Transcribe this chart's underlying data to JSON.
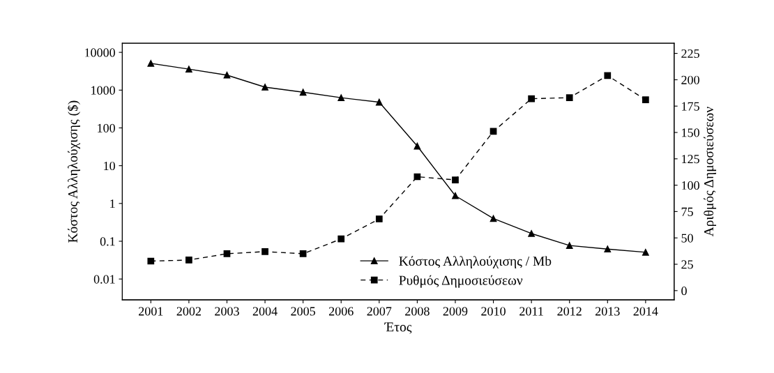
{
  "chart_data": {
    "type": "line",
    "xlabel": "Έτος",
    "ylabel": "Κόστος Αλληλούχισης ($)",
    "y2label": "Αριθμός Δημοσιεύσεων",
    "categories": [
      "2001",
      "2002",
      "2003",
      "2004",
      "2005",
      "2006",
      "2007",
      "2008",
      "2009",
      "2010",
      "2011",
      "2012",
      "2013",
      "2014"
    ],
    "series": [
      {
        "name": "Κόστος Αλληλούχισης / Mb",
        "color": "#000000",
        "marker": "triangle",
        "line_style": "solid",
        "values": [
          5100,
          3600,
          2500,
          1200,
          880,
          630,
          480,
          33,
          1.6,
          0.4,
          0.16,
          0.077,
          0.062,
          0.051
        ]
      },
      {
        "name": "Ρυθμός Δημοσιεύσεων",
        "color": "#000000",
        "marker": "square",
        "line_style": "dashed",
        "axis": "y2",
        "values": [
          28,
          29,
          35,
          37,
          35,
          49,
          68,
          108,
          105,
          151,
          182,
          183,
          204,
          181
        ]
      }
    ],
    "log": "y",
    "ylim": [
      0.0028,
      17400
    ],
    "yticks": [
      0.01,
      0.1,
      1,
      10,
      100,
      1000,
      10000
    ],
    "y2lim": [
      -8.8,
      234.6
    ],
    "y2ticks": [
      0,
      25,
      50,
      75,
      100,
      125,
      150,
      175,
      200,
      225
    ],
    "grid": false,
    "legend": "bottom right"
  }
}
